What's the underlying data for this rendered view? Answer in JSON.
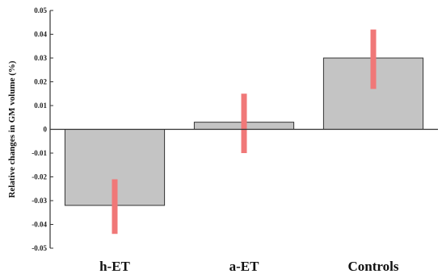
{
  "chart_data": {
    "type": "bar",
    "title": "",
    "xlabel": "",
    "ylabel": "Relative changes in GM volume (%)",
    "categories": [
      "h-ET",
      "a-ET",
      "Controls"
    ],
    "values": [
      -0.032,
      0.003,
      0.03
    ],
    "error_low": [
      -0.044,
      -0.01,
      0.017
    ],
    "error_high": [
      -0.021,
      0.015,
      0.042
    ],
    "ylim": [
      -0.05,
      0.05
    ],
    "yticks": [
      0.05,
      0.04,
      0.03,
      0.02,
      0.01,
      0,
      -0.01,
      -0.02,
      -0.03,
      -0.04,
      -0.05
    ],
    "ytick_labels": [
      "0.05",
      "0.04",
      "0.03",
      "0.02",
      "0.01",
      "0",
      "-0.01",
      "-0.02",
      "-0.03",
      "-0.04",
      "-0.05"
    ],
    "grid": false,
    "legend": "none",
    "colors": {
      "bar": "#c4c4c4",
      "bar_edge": "#333333",
      "error": "#f07878",
      "axis": "#333333"
    }
  }
}
